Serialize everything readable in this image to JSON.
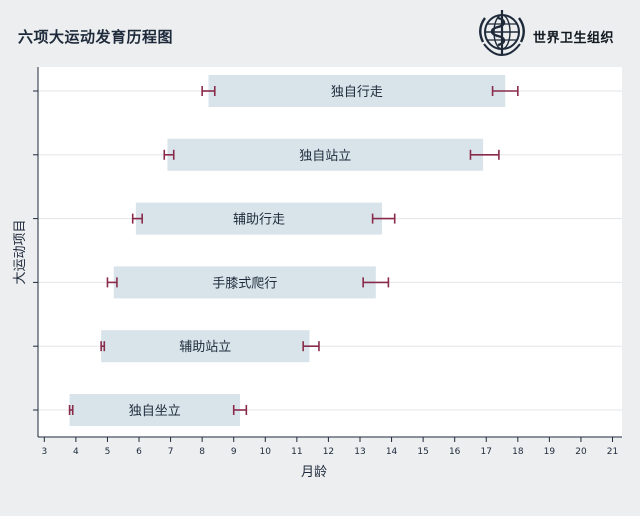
{
  "title": "六项大运动发育历程图",
  "organization": "世界卫生组织",
  "colors": {
    "background": "#eceef0",
    "plot_background": "#ffffff",
    "bar_fill": "#d8e4ea",
    "whisker": "#8a2a4a",
    "axis": "#1e2a3a",
    "grid": "#e3e6e9"
  },
  "chart_data": {
    "type": "bar",
    "orientation": "horizontal",
    "title": "六项大运动发育历程图",
    "xlabel": "月龄",
    "ylabel": "大运动项目",
    "xlim": [
      2.8,
      21.3
    ],
    "xticks": [
      3,
      4,
      5,
      6,
      7,
      8,
      9,
      10,
      11,
      12,
      13,
      14,
      15,
      16,
      17,
      18,
      19,
      20,
      21
    ],
    "grid": "horizontal",
    "categories": [
      "独自行走",
      "独自站立",
      "辅助行走",
      "手膝式爬行",
      "辅助站立",
      "独自坐立"
    ],
    "bars": [
      {
        "label": "独自行走",
        "start": 8.2,
        "end": 17.6,
        "start_ci": [
          8.0,
          8.4
        ],
        "end_ci": [
          17.2,
          18.0
        ]
      },
      {
        "label": "独自站立",
        "start": 6.9,
        "end": 16.9,
        "start_ci": [
          6.8,
          7.1
        ],
        "end_ci": [
          16.5,
          17.4
        ]
      },
      {
        "label": "辅助行走",
        "start": 5.9,
        "end": 13.7,
        "start_ci": [
          5.8,
          6.1
        ],
        "end_ci": [
          13.4,
          14.1
        ]
      },
      {
        "label": "手膝式爬行",
        "start": 5.2,
        "end": 13.5,
        "start_ci": [
          5.0,
          5.3
        ],
        "end_ci": [
          13.1,
          13.9
        ]
      },
      {
        "label": "辅助站立",
        "start": 4.8,
        "end": 11.4,
        "start_ci": [
          4.8,
          4.9
        ],
        "end_ci": [
          11.2,
          11.7
        ]
      },
      {
        "label": "独自坐立",
        "start": 3.8,
        "end": 9.2,
        "start_ci": [
          3.8,
          3.9
        ],
        "end_ci": [
          9.0,
          9.4
        ]
      }
    ]
  }
}
